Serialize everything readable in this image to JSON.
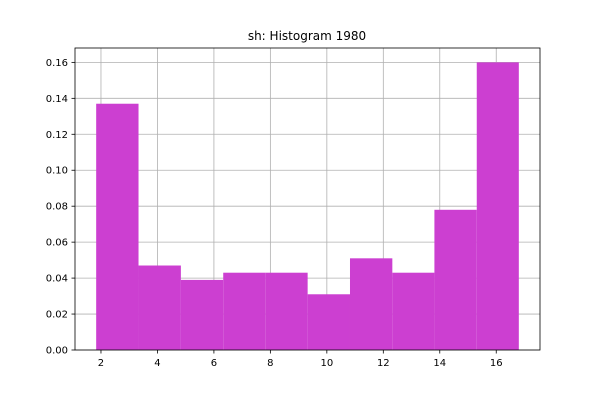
{
  "chart_data": {
    "type": "bar",
    "title": "sh: Histogram 1980",
    "xlabel": "",
    "ylabel": "",
    "bar_color": "#cc3fd1",
    "grid": true,
    "grid_color": "#b0b0b0",
    "xlim": [
      1.08,
      17.55
    ],
    "ylim": [
      0,
      0.168
    ],
    "xticks": [
      2,
      4,
      6,
      8,
      10,
      12,
      14,
      16
    ],
    "xtick_labels": [
      "2",
      "4",
      "6",
      "8",
      "10",
      "12",
      "14",
      "16"
    ],
    "yticks": [
      0,
      0.02,
      0.04,
      0.06,
      0.08,
      0.1,
      0.12,
      0.14,
      0.16
    ],
    "ytick_labels": [
      "0.00",
      "0.02",
      "0.04",
      "0.06",
      "0.08",
      "0.10",
      "0.12",
      "0.14",
      "0.16"
    ],
    "bin_edges": [
      1.83,
      3.33,
      4.83,
      6.33,
      7.82,
      9.32,
      10.82,
      12.32,
      13.81,
      15.31,
      16.8
    ],
    "values": [
      0.137,
      0.047,
      0.039,
      0.043,
      0.043,
      0.031,
      0.051,
      0.043,
      0.078,
      0.16
    ]
  }
}
